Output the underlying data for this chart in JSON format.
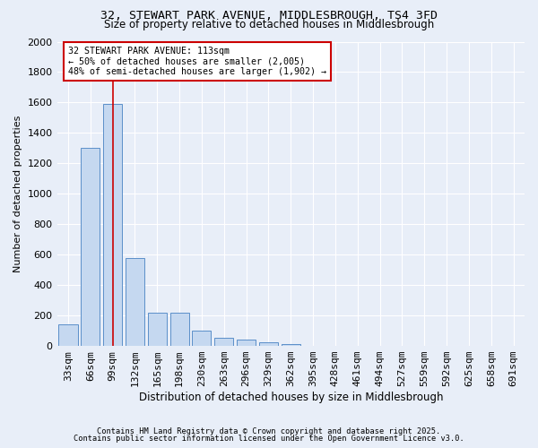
{
  "title": "32, STEWART PARK AVENUE, MIDDLESBROUGH, TS4 3FD",
  "subtitle": "Size of property relative to detached houses in Middlesbrough",
  "xlabel": "Distribution of detached houses by size in Middlesbrough",
  "ylabel": "Number of detached properties",
  "bar_color": "#c5d8f0",
  "bar_edge_color": "#5b8fc9",
  "background_color": "#e8eef8",
  "grid_color": "#ffffff",
  "categories": [
    "33sqm",
    "66sqm",
    "99sqm",
    "132sqm",
    "165sqm",
    "198sqm",
    "230sqm",
    "263sqm",
    "296sqm",
    "329sqm",
    "362sqm",
    "395sqm",
    "428sqm",
    "461sqm",
    "494sqm",
    "527sqm",
    "559sqm",
    "592sqm",
    "625sqm",
    "658sqm",
    "691sqm"
  ],
  "values": [
    140,
    1300,
    1590,
    580,
    220,
    220,
    100,
    55,
    40,
    25,
    15,
    0,
    0,
    0,
    0,
    0,
    0,
    0,
    0,
    0,
    0
  ],
  "vline_x": 2.0,
  "vline_color": "#cc0000",
  "annotation_text": "32 STEWART PARK AVENUE: 113sqm\n← 50% of detached houses are smaller (2,005)\n48% of semi-detached houses are larger (1,902) →",
  "annotation_box_color": "#ffffff",
  "annotation_box_edge_color": "#cc0000",
  "ylim": [
    0,
    2000
  ],
  "yticks": [
    0,
    200,
    400,
    600,
    800,
    1000,
    1200,
    1400,
    1600,
    1800,
    2000
  ],
  "footer_line1": "Contains HM Land Registry data © Crown copyright and database right 2025.",
  "footer_line2": "Contains public sector information licensed under the Open Government Licence v3.0."
}
